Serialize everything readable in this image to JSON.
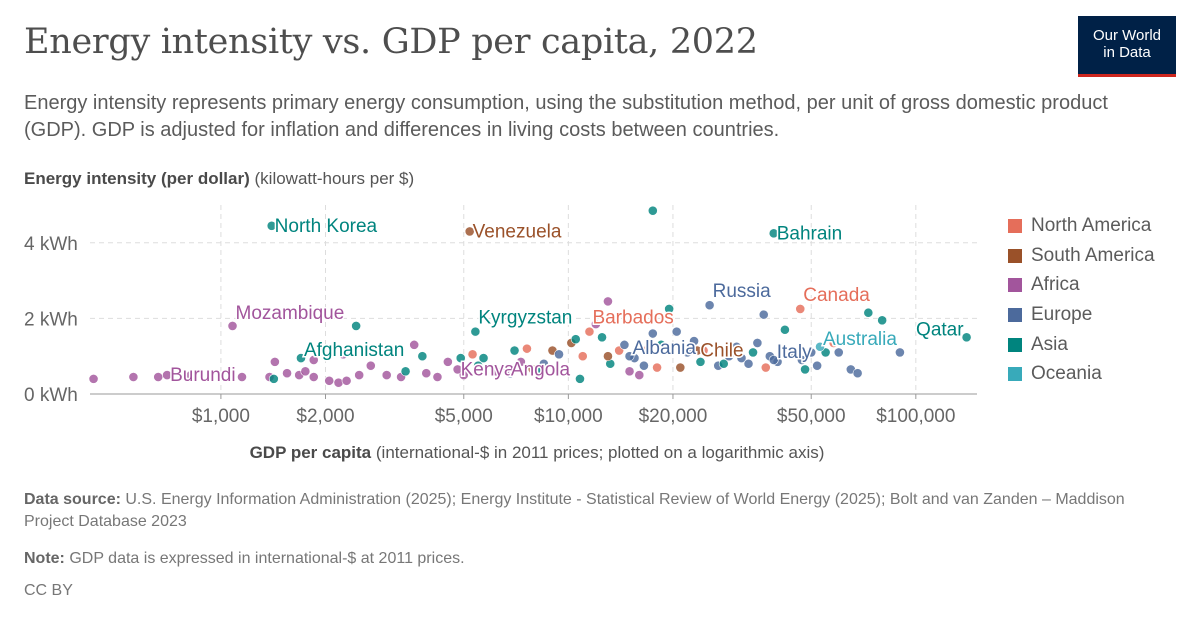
{
  "title": "Energy intensity vs. GDP per capita, 2022",
  "subtitle": "Energy intensity represents primary energy consumption, using the substitution method, per unit of gross domestic product (GDP). GDP is adjusted for inflation and differences in living costs between countries.",
  "logo": {
    "line1": "Our World",
    "line2": "in Data"
  },
  "colors": {
    "North America": "#e56e5a",
    "South America": "#9a5129",
    "Africa": "#a2559c",
    "Europe": "#4c6a9c",
    "Asia": "#00847e",
    "Oceania": "#38aaba"
  },
  "footer": {
    "source_label": "Data source:",
    "source_text": "U.S. Energy Information Administration (2025); Energy Institute - Statistical Review of World Energy (2025); Bolt and van Zanden – Maddison Project Database 2023",
    "note_label": "Note:",
    "note_text": "GDP data is expressed in international-$ at 2011 prices.",
    "license": "CC BY"
  },
  "chart_data": {
    "type": "scatter",
    "title": "Energy intensity vs. GDP per capita, 2022",
    "ylabel_bold": "Energy intensity (per dollar)",
    "ylabel_unit": "(kilowatt-hours per $)",
    "xlabel_bold": "GDP per capita",
    "xlabel_unit": "(international-$ in 2011 prices; plotted on a logarithmic axis)",
    "x_scale": "log",
    "xlim": [
      420,
      150000
    ],
    "ylim": [
      0,
      5
    ],
    "x_ticks": [
      {
        "v": 1000,
        "label": "$1,000"
      },
      {
        "v": 2000,
        "label": "$2,000"
      },
      {
        "v": 5000,
        "label": "$5,000"
      },
      {
        "v": 10000,
        "label": "$10,000"
      },
      {
        "v": 20000,
        "label": "$20,000"
      },
      {
        "v": 50000,
        "label": "$50,000"
      },
      {
        "v": 100000,
        "label": "$100,000"
      }
    ],
    "y_ticks": [
      {
        "v": 0,
        "label": "0 kWh"
      },
      {
        "v": 2,
        "label": "2 kWh"
      },
      {
        "v": 4,
        "label": "4 kWh"
      }
    ],
    "grid": true,
    "legend_position": "right",
    "legend": [
      "North America",
      "South America",
      "Africa",
      "Europe",
      "Asia",
      "Oceania"
    ],
    "labeled_points": [
      {
        "label": "North Korea",
        "region": "Asia",
        "x": 1400,
        "y": 4.45
      },
      {
        "label": "Venezuela",
        "region": "South America",
        "x": 5200,
        "y": 4.3
      },
      {
        "label": "Bahrain",
        "region": "Asia",
        "x": 39000,
        "y": 4.25
      },
      {
        "label": "Mozambique",
        "region": "Africa",
        "x": 1080,
        "y": 1.8
      },
      {
        "label": "Kyrgyzstan",
        "region": "Asia",
        "x": 5400,
        "y": 1.65
      },
      {
        "label": "Barbados",
        "region": "North America",
        "x": 11500,
        "y": 1.65
      },
      {
        "label": "Russia",
        "region": "Europe",
        "x": 25500,
        "y": 2.35
      },
      {
        "label": "Canada",
        "region": "North America",
        "x": 46500,
        "y": 2.25
      },
      {
        "label": "Qatar",
        "region": "Asia",
        "x": 140000,
        "y": 1.5
      },
      {
        "label": "Australia",
        "region": "Oceania",
        "x": 53000,
        "y": 1.25
      },
      {
        "label": "Afghanistan",
        "region": "Asia",
        "x": 1700,
        "y": 0.95
      },
      {
        "label": "Chile",
        "region": "South America",
        "x": 23500,
        "y": 1.15
      },
      {
        "label": "Albania",
        "region": "Europe",
        "x": 15000,
        "y": 1.0
      },
      {
        "label": "Italy",
        "region": "Europe",
        "x": 39000,
        "y": 0.9
      },
      {
        "label": "Burundi",
        "region": "Africa",
        "x": 700,
        "y": 0.5
      },
      {
        "label": "Kenya",
        "region": "Africa",
        "x": 4800,
        "y": 0.65
      },
      {
        "label": "Angola",
        "region": "Africa",
        "x": 6700,
        "y": 0.65
      }
    ],
    "points": [
      {
        "region": "Asia",
        "x": 17500,
        "y": 4.85
      },
      {
        "region": "Africa",
        "x": 430,
        "y": 0.4
      },
      {
        "region": "Africa",
        "x": 560,
        "y": 0.45
      },
      {
        "region": "Africa",
        "x": 660,
        "y": 0.45
      },
      {
        "region": "Africa",
        "x": 820,
        "y": 0.5
      },
      {
        "region": "Africa",
        "x": 1150,
        "y": 0.45
      },
      {
        "region": "Africa",
        "x": 1380,
        "y": 0.45
      },
      {
        "region": "Asia",
        "x": 1420,
        "y": 0.4
      },
      {
        "region": "Africa",
        "x": 1550,
        "y": 0.55
      },
      {
        "region": "Africa",
        "x": 1680,
        "y": 0.5
      },
      {
        "region": "Africa",
        "x": 1750,
        "y": 0.6
      },
      {
        "region": "Africa",
        "x": 1850,
        "y": 0.45
      },
      {
        "region": "Africa",
        "x": 2050,
        "y": 0.35
      },
      {
        "region": "Africa",
        "x": 2180,
        "y": 0.3
      },
      {
        "region": "Africa",
        "x": 2300,
        "y": 0.35
      },
      {
        "region": "Africa",
        "x": 2500,
        "y": 0.5
      },
      {
        "region": "Africa",
        "x": 2700,
        "y": 0.75
      },
      {
        "region": "Asia",
        "x": 2450,
        "y": 1.8
      },
      {
        "region": "Africa",
        "x": 1430,
        "y": 0.85
      },
      {
        "region": "Africa",
        "x": 1850,
        "y": 0.9
      },
      {
        "region": "Africa",
        "x": 2250,
        "y": 1.05
      },
      {
        "region": "Africa",
        "x": 3000,
        "y": 0.5
      },
      {
        "region": "Africa",
        "x": 3300,
        "y": 0.45
      },
      {
        "region": "Asia",
        "x": 3400,
        "y": 0.6
      },
      {
        "region": "Africa",
        "x": 3600,
        "y": 1.3
      },
      {
        "region": "Africa",
        "x": 3900,
        "y": 0.55
      },
      {
        "region": "Africa",
        "x": 4200,
        "y": 0.45
      },
      {
        "region": "Asia",
        "x": 3800,
        "y": 1.0
      },
      {
        "region": "Africa",
        "x": 4500,
        "y": 0.85
      },
      {
        "region": "Asia",
        "x": 4900,
        "y": 0.95
      },
      {
        "region": "Africa",
        "x": 5000,
        "y": 0.5
      },
      {
        "region": "North America",
        "x": 5300,
        "y": 1.05
      },
      {
        "region": "Asia",
        "x": 5700,
        "y": 0.95
      },
      {
        "region": "Asia",
        "x": 5500,
        "y": 0.75
      },
      {
        "region": "Africa",
        "x": 6200,
        "y": 0.6
      },
      {
        "region": "Europe",
        "x": 6800,
        "y": 0.55
      },
      {
        "region": "Asia",
        "x": 7000,
        "y": 1.15
      },
      {
        "region": "Africa",
        "x": 7300,
        "y": 0.85
      },
      {
        "region": "North America",
        "x": 7600,
        "y": 1.2
      },
      {
        "region": "South America",
        "x": 7900,
        "y": 0.65
      },
      {
        "region": "Asia",
        "x": 8200,
        "y": 0.6
      },
      {
        "region": "Europe",
        "x": 8500,
        "y": 0.8
      },
      {
        "region": "South America",
        "x": 9000,
        "y": 1.15
      },
      {
        "region": "Europe",
        "x": 9400,
        "y": 1.05
      },
      {
        "region": "South America",
        "x": 10200,
        "y": 1.35
      },
      {
        "region": "Asia",
        "x": 10800,
        "y": 0.4
      },
      {
        "region": "Asia",
        "x": 10500,
        "y": 1.45
      },
      {
        "region": "North America",
        "x": 11000,
        "y": 1.0
      },
      {
        "region": "Africa",
        "x": 12000,
        "y": 1.85
      },
      {
        "region": "Asia",
        "x": 12500,
        "y": 1.5
      },
      {
        "region": "Africa",
        "x": 13000,
        "y": 2.45
      },
      {
        "region": "Asia",
        "x": 13200,
        "y": 0.8
      },
      {
        "region": "South America",
        "x": 13000,
        "y": 1.0
      },
      {
        "region": "North America",
        "x": 14000,
        "y": 1.15
      },
      {
        "region": "Europe",
        "x": 14500,
        "y": 1.3
      },
      {
        "region": "Africa",
        "x": 15000,
        "y": 0.6
      },
      {
        "region": "Europe",
        "x": 15500,
        "y": 0.95
      },
      {
        "region": "Africa",
        "x": 16000,
        "y": 0.5
      },
      {
        "region": "Europe",
        "x": 16500,
        "y": 0.75
      },
      {
        "region": "North America",
        "x": 17000,
        "y": 1.2
      },
      {
        "region": "Europe",
        "x": 17500,
        "y": 1.6
      },
      {
        "region": "North America",
        "x": 18000,
        "y": 0.7
      },
      {
        "region": "Asia",
        "x": 18500,
        "y": 1.3
      },
      {
        "region": "Asia",
        "x": 19500,
        "y": 2.25
      },
      {
        "region": "Europe",
        "x": 20500,
        "y": 1.65
      },
      {
        "region": "South America",
        "x": 21000,
        "y": 0.7
      },
      {
        "region": "Europe",
        "x": 22000,
        "y": 1.1
      },
      {
        "region": "Europe",
        "x": 23000,
        "y": 1.4
      },
      {
        "region": "Asia",
        "x": 24000,
        "y": 0.85
      },
      {
        "region": "North America",
        "x": 24500,
        "y": 1.15
      },
      {
        "region": "Europe",
        "x": 27000,
        "y": 0.75
      },
      {
        "region": "Asia",
        "x": 28000,
        "y": 0.8
      },
      {
        "region": "Europe",
        "x": 29000,
        "y": 1.0
      },
      {
        "region": "Europe",
        "x": 30500,
        "y": 1.25
      },
      {
        "region": "Europe",
        "x": 31500,
        "y": 0.95
      },
      {
        "region": "Europe",
        "x": 33000,
        "y": 0.8
      },
      {
        "region": "Asia",
        "x": 34000,
        "y": 1.1
      },
      {
        "region": "Europe",
        "x": 35000,
        "y": 1.35
      },
      {
        "region": "Europe",
        "x": 36500,
        "y": 2.1
      },
      {
        "region": "North America",
        "x": 37000,
        "y": 0.7
      },
      {
        "region": "Europe",
        "x": 38000,
        "y": 1.0
      },
      {
        "region": "Europe",
        "x": 40000,
        "y": 0.85
      },
      {
        "region": "Asia",
        "x": 42000,
        "y": 1.7
      },
      {
        "region": "Europe",
        "x": 44000,
        "y": 1.1
      },
      {
        "region": "Europe",
        "x": 47000,
        "y": 0.9
      },
      {
        "region": "Asia",
        "x": 48000,
        "y": 0.65
      },
      {
        "region": "Europe",
        "x": 50000,
        "y": 1.1
      },
      {
        "region": "Europe",
        "x": 52000,
        "y": 0.75
      },
      {
        "region": "Asia",
        "x": 55000,
        "y": 1.1
      },
      {
        "region": "North America",
        "x": 58000,
        "y": 1.35
      },
      {
        "region": "Europe",
        "x": 60000,
        "y": 1.1
      },
      {
        "region": "Europe",
        "x": 65000,
        "y": 0.65
      },
      {
        "region": "Europe",
        "x": 68000,
        "y": 0.55
      },
      {
        "region": "Asia",
        "x": 73000,
        "y": 2.15
      },
      {
        "region": "Asia",
        "x": 80000,
        "y": 1.95
      },
      {
        "region": "Europe",
        "x": 90000,
        "y": 1.1
      }
    ]
  }
}
